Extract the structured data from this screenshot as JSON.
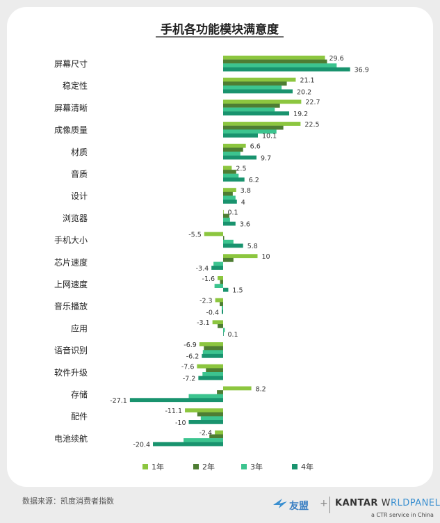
{
  "colors": {
    "y1": "#8cc63f",
    "y2": "#4e7d33",
    "y3": "#3cc48f",
    "y4": "#19936e"
  },
  "chart_data": {
    "type": "bar",
    "orientation": "horizontal",
    "title": "手机各功能模块满意度",
    "categories": [
      "屏幕尺寸",
      "稳定性",
      "屏幕清晰",
      "成像质量",
      "材质",
      "音质",
      "设计",
      "浏览器",
      "手机大小",
      "芯片速度",
      "上网速度",
      "音乐播放",
      "应用",
      "语音识别",
      "软件升级",
      "存储",
      "配件",
      "电池续航"
    ],
    "series": [
      {
        "name": "1年",
        "color": "#8cc63f",
        "values": [
          29.6,
          21.1,
          22.7,
          22.5,
          6.6,
          2.5,
          3.8,
          0.1,
          -5.5,
          10,
          -1.6,
          -2.3,
          -3.1,
          -6.9,
          -7.6,
          8.2,
          -11.1,
          -2.4
        ]
      },
      {
        "name": "2年",
        "color": "#4e7d33",
        "values": [
          30.2,
          18.5,
          16.5,
          17.5,
          5.8,
          3.8,
          2.8,
          1.8,
          0.3,
          3.0,
          -0.9,
          -1.0,
          -1.6,
          -5.6,
          -5.0,
          -1.8,
          -7.5,
          -4.0
        ]
      },
      {
        "name": "3年",
        "color": "#3cc48f",
        "values": [
          33.0,
          17.0,
          15.0,
          15.5,
          5.0,
          4.5,
          3.6,
          2.0,
          3.0,
          -2.8,
          -2.5,
          -0.4,
          0.5,
          -5.9,
          -6.0,
          -10.0,
          -6.5,
          -11.5
        ]
      },
      {
        "name": "4年",
        "color": "#19936e",
        "values": [
          36.9,
          20.2,
          19.2,
          10.1,
          9.7,
          6.2,
          4,
          3.6,
          5.8,
          -3.4,
          1.5,
          -0.4,
          0.1,
          -6.2,
          -7.2,
          -27.1,
          -10,
          -20.4
        ]
      }
    ],
    "data_labels": [
      {
        "category": "屏幕尺寸",
        "top": "29.6",
        "bottom": "36.9"
      },
      {
        "category": "稳定性",
        "top": "21.1",
        "bottom": "20.2"
      },
      {
        "category": "屏幕清晰",
        "top": "22.7",
        "bottom": "19.2"
      },
      {
        "category": "成像质量",
        "top": "22.5",
        "bottom": "10.1"
      },
      {
        "category": "材质",
        "top": "6.6",
        "bottom": "9.7"
      },
      {
        "category": "音质",
        "top": "2.5",
        "bottom": "6.2"
      },
      {
        "category": "设计",
        "top": "3.8",
        "bottom": "4"
      },
      {
        "category": "浏览器",
        "top": "0.1",
        "bottom": "3.6"
      },
      {
        "category": "手机大小",
        "top": "-5.5",
        "bottom": "5.8"
      },
      {
        "category": "芯片速度",
        "top": "10",
        "bottom": "-3.4"
      },
      {
        "category": "上网速度",
        "top": "-1.6",
        "bottom": "1.5"
      },
      {
        "category": "音乐播放",
        "top": "-2.3",
        "bottom": "-0.4"
      },
      {
        "category": "应用",
        "top": "-3.1",
        "bottom": "0.1"
      },
      {
        "category": "语音识别",
        "top": "-6.9",
        "bottom": "-6.2"
      },
      {
        "category": "软件升级",
        "top": "-7.6",
        "bottom": "-7.2"
      },
      {
        "category": "存储",
        "top": "8.2",
        "bottom": "-27.1"
      },
      {
        "category": "配件",
        "top": "-11.1",
        "bottom": "-10"
      },
      {
        "category": "电池续航",
        "top": "-2.4",
        "bottom": "-20.4"
      }
    ],
    "xlim": [
      -30,
      40
    ],
    "grid": false,
    "legend_position": "bottom"
  },
  "footer": {
    "source": "数据来源：凯度消费者指数",
    "brand_youmeng": "友盟",
    "brand_plus": "+",
    "brand_kantar_a": "KANTAR",
    "brand_kantar_b": "W",
    "brand_kantar_c": "RLDPANEL",
    "brand_ctr": "a CTR service in China"
  }
}
